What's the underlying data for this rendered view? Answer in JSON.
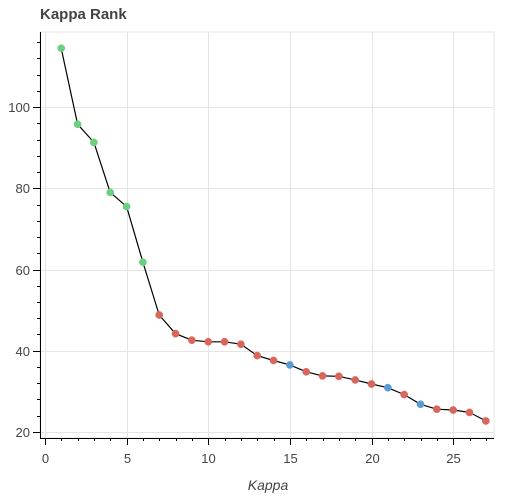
{
  "chart_data": {
    "type": "line",
    "title": "Kappa Rank",
    "xlabel": "Kappa",
    "ylabel": "",
    "xlim": [
      -0.3,
      27.5
    ],
    "ylim": [
      18.5,
      118.5
    ],
    "xticks": [
      0,
      5,
      10,
      15,
      20,
      25
    ],
    "yticks": [
      20,
      40,
      60,
      80,
      100
    ],
    "grid": true,
    "line_color": "#000000",
    "colors": {
      "green": "#6ccf7e",
      "red": "#d9665a",
      "blue": "#5b9bd5"
    },
    "points": [
      {
        "x": 1,
        "y": 114.5,
        "color": "green"
      },
      {
        "x": 2,
        "y": 95.8,
        "color": "green"
      },
      {
        "x": 3,
        "y": 91.3,
        "color": "green"
      },
      {
        "x": 4,
        "y": 79.0,
        "color": "green"
      },
      {
        "x": 5,
        "y": 75.5,
        "color": "green"
      },
      {
        "x": 6,
        "y": 61.8,
        "color": "green"
      },
      {
        "x": 7,
        "y": 48.8,
        "color": "red"
      },
      {
        "x": 8,
        "y": 44.2,
        "color": "red"
      },
      {
        "x": 9,
        "y": 42.6,
        "color": "red"
      },
      {
        "x": 10,
        "y": 42.2,
        "color": "red"
      },
      {
        "x": 11,
        "y": 42.2,
        "color": "red"
      },
      {
        "x": 12,
        "y": 41.6,
        "color": "red"
      },
      {
        "x": 13,
        "y": 38.8,
        "color": "red"
      },
      {
        "x": 14,
        "y": 37.6,
        "color": "red"
      },
      {
        "x": 15,
        "y": 36.5,
        "color": "blue"
      },
      {
        "x": 16,
        "y": 34.8,
        "color": "red"
      },
      {
        "x": 17,
        "y": 33.8,
        "color": "red"
      },
      {
        "x": 18,
        "y": 33.7,
        "color": "red"
      },
      {
        "x": 19,
        "y": 32.8,
        "color": "red"
      },
      {
        "x": 20,
        "y": 31.8,
        "color": "red"
      },
      {
        "x": 21,
        "y": 30.9,
        "color": "blue"
      },
      {
        "x": 22,
        "y": 29.2,
        "color": "red"
      },
      {
        "x": 23,
        "y": 26.8,
        "color": "blue"
      },
      {
        "x": 24,
        "y": 25.6,
        "color": "red"
      },
      {
        "x": 25,
        "y": 25.4,
        "color": "red"
      },
      {
        "x": 26,
        "y": 24.8,
        "color": "red"
      },
      {
        "x": 27,
        "y": 22.7,
        "color": "red"
      }
    ]
  }
}
